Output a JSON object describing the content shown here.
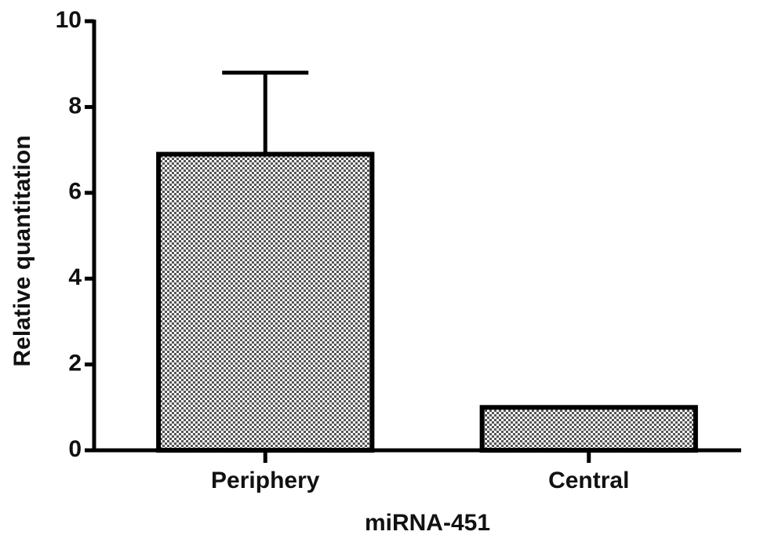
{
  "chart_data": {
    "type": "bar",
    "x_label": "miRNA-451",
    "y_label": "Relative quantitation",
    "categories": [
      "Periphery",
      "Central"
    ],
    "values": [
      6.9,
      1.0
    ],
    "errors": [
      1.9,
      null
    ],
    "color": "#9a9a9a",
    "ylim": [
      0,
      10
    ],
    "yticks": [
      0,
      2,
      4,
      6,
      8,
      10
    ],
    "grid": false
  }
}
